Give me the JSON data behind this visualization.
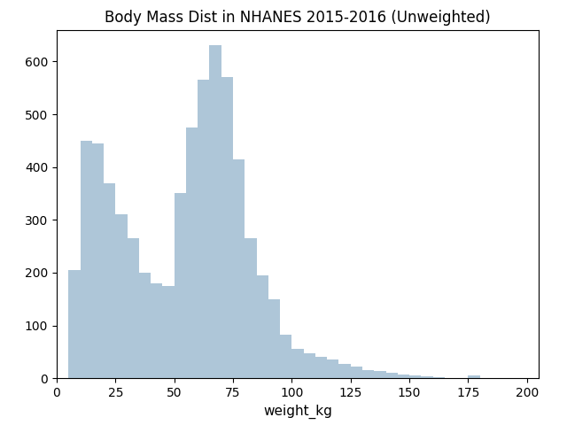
{
  "title": "Body Mass Dist in NHANES 2015-2016 (Unweighted)",
  "xlabel": "weight_kg",
  "ylabel": "",
  "bar_color": "#aec6d8",
  "bar_edgecolor": "#aec6d8",
  "xlim": [
    0,
    205
  ],
  "ylim": [
    0,
    660
  ],
  "bin_edges": [
    0,
    5,
    10,
    15,
    20,
    25,
    30,
    35,
    40,
    45,
    50,
    55,
    60,
    65,
    70,
    75,
    80,
    85,
    90,
    95,
    100,
    105,
    110,
    115,
    120,
    125,
    130,
    135,
    140,
    145,
    150,
    155,
    160,
    165,
    170,
    175,
    180,
    185,
    190,
    195,
    200,
    205
  ],
  "counts": [
    0,
    205,
    450,
    445,
    370,
    310,
    265,
    200,
    180,
    175,
    350,
    475,
    565,
    630,
    570,
    415,
    265,
    195,
    150,
    82,
    55,
    48,
    40,
    35,
    28,
    22,
    16,
    14,
    10,
    7,
    5,
    3,
    2,
    1,
    0,
    5,
    0,
    0,
    0,
    0,
    0
  ],
  "xticks": [
    0,
    25,
    50,
    75,
    100,
    125,
    150,
    175,
    200
  ],
  "yticks": [
    0,
    100,
    200,
    300,
    400,
    500,
    600
  ]
}
